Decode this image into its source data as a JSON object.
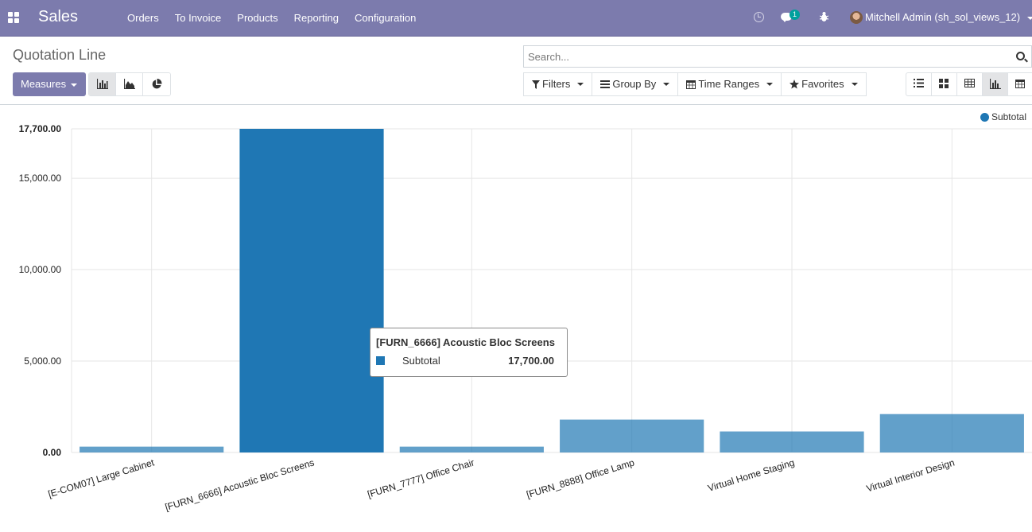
{
  "navbar": {
    "app_name": "Sales",
    "menu": [
      "Orders",
      "To Invoice",
      "Products",
      "Reporting",
      "Configuration"
    ],
    "notification_count": "1",
    "user_name": "Mitchell Admin (sh_sol_views_12)"
  },
  "control_panel": {
    "title": "Quotation Line",
    "search_placeholder": "Search...",
    "measures_label": "Measures",
    "filters_label": "Filters",
    "group_by_label": "Group By",
    "time_ranges_label": "Time Ranges",
    "favorites_label": "Favorites",
    "active_chart_type": "bar",
    "active_view": "graph"
  },
  "chart_data": {
    "type": "bar",
    "categories": [
      "[E-COM07] Large Cabinet",
      "[FURN_6666] Acoustic Bloc Screens",
      "[FURN_7777] Office Chair",
      "[FURN_8888] Office Lamp",
      "Virtual Home Staging",
      "Virtual Interior Design"
    ],
    "series": [
      {
        "name": "Subtotal",
        "values": [
          320,
          17700,
          320,
          1800,
          1150,
          2100
        ]
      }
    ],
    "ylim": [
      0,
      17700
    ],
    "yticks": [
      0,
      5000,
      10000,
      15000,
      17700
    ],
    "ytick_labels": [
      "0.00",
      "5,000.00",
      "10,000.00",
      "15,000.00",
      "17,700.00"
    ],
    "highlighted_index": 1,
    "bar_color": "#1f77b4",
    "grid": true,
    "legend_position": "top-right"
  },
  "tooltip": {
    "title": "[FURN_6666] Acoustic Bloc Screens",
    "label": "Subtotal",
    "value": "17,700.00"
  }
}
